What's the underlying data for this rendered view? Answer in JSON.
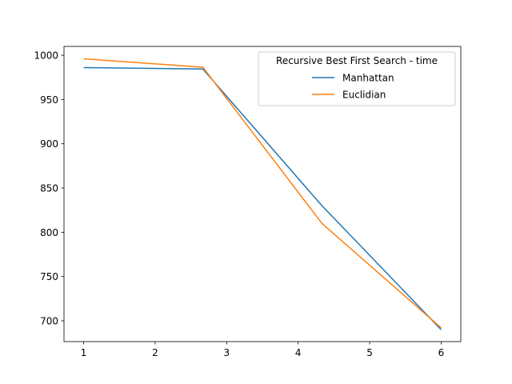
{
  "chart_data": {
    "type": "line",
    "title": "",
    "xlabel": "",
    "ylabel": "",
    "xlim": [
      0.725,
      6.275
    ],
    "ylim": [
      676.5,
      1010.0
    ],
    "x_ticks": [
      1,
      2,
      3,
      4,
      5,
      6
    ],
    "y_ticks": [
      700,
      750,
      800,
      850,
      900,
      950,
      1000
    ],
    "grid": false,
    "legend": {
      "title": "Recursive Best First Search - time",
      "placement": "top-right"
    },
    "series": [
      {
        "name": "Manhattan",
        "color": "#1f77b4",
        "x": [
          1,
          2.667,
          4.333,
          6
        ],
        "y": [
          986,
          984.5,
          830,
          690
        ]
      },
      {
        "name": "Euclidian",
        "color": "#ff7f0e",
        "x": [
          1,
          2.667,
          4.333,
          6
        ],
        "y": [
          996,
          986.5,
          810,
          692
        ]
      }
    ]
  }
}
